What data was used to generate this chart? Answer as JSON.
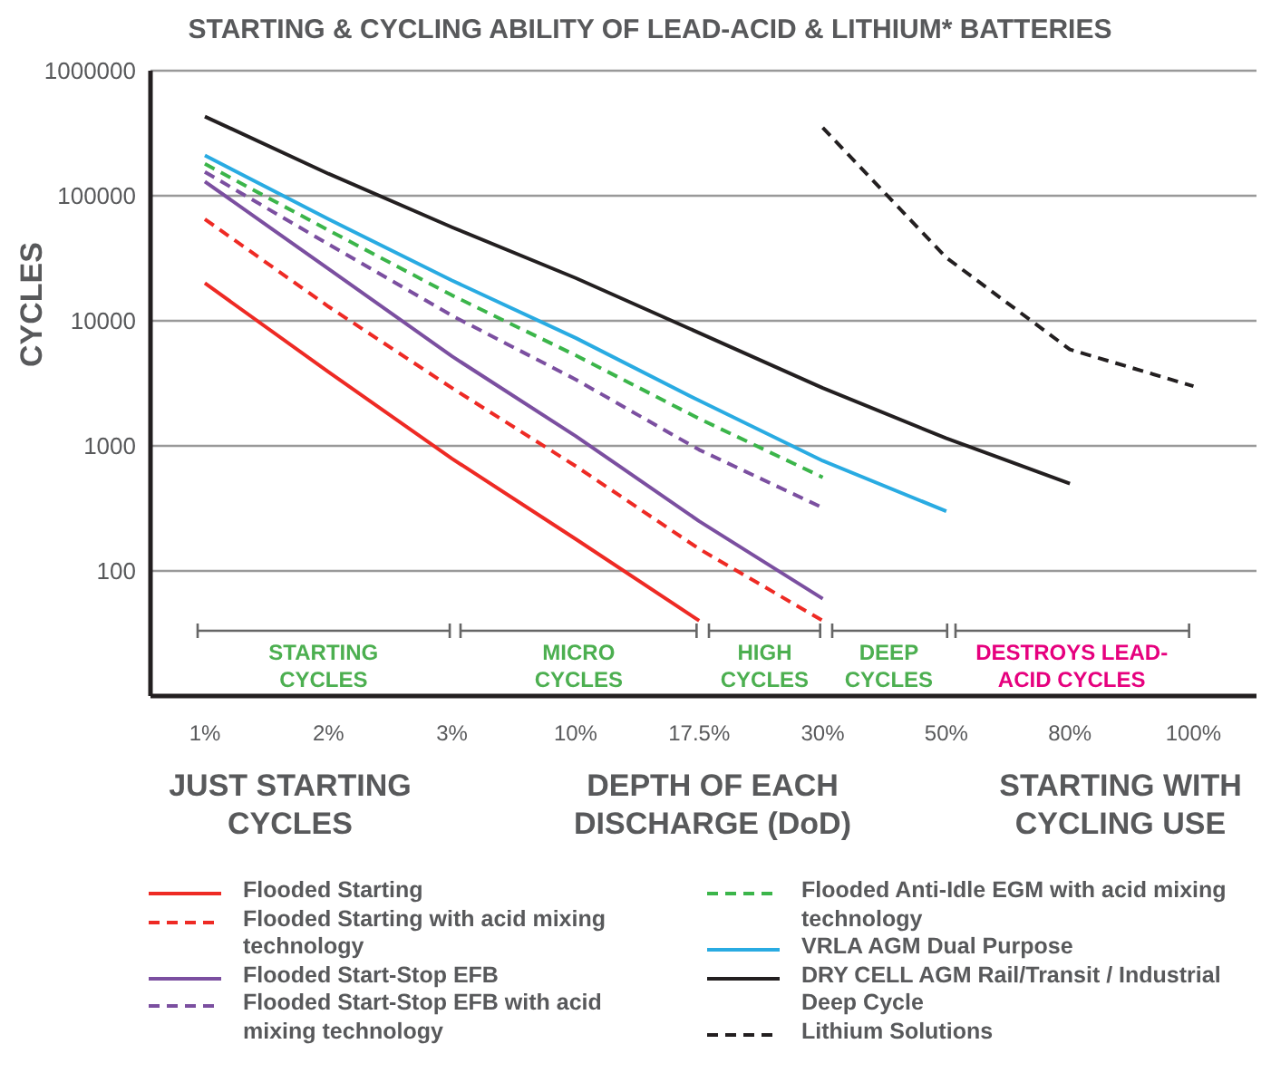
{
  "chart_data": {
    "type": "line",
    "title": "STARTING & CYCLING ABILITY OF LEAD-ACID & LITHIUM* BATTERIES",
    "xlabel": "DEPTH OF EACH DISCHARGE (DoD)",
    "ylabel": "CYCLES",
    "categories": [
      "1%",
      "2%",
      "3%",
      "10%",
      "17.5%",
      "30%",
      "50%",
      "80%",
      "100%"
    ],
    "series": [
      {
        "name": "Flooded Starting",
        "color": "#ee2a24",
        "line_style": "solid",
        "values": [
          20000,
          3900,
          790,
          180,
          40,
          null,
          null,
          null,
          null
        ]
      },
      {
        "name": "Flooded Starting with acid mixing technology",
        "color": "#ee2a24",
        "line_style": "dashed",
        "values": [
          65000,
          13000,
          2900,
          690,
          150,
          40,
          null,
          null,
          null
        ]
      },
      {
        "name": "Flooded Start-Stop EFB",
        "color": "#7b4fa0",
        "line_style": "solid",
        "values": [
          130000,
          26000,
          5200,
          1200,
          250,
          60,
          null,
          null,
          null
        ]
      },
      {
        "name": "Flooded Start-Stop EFB with acid mixing technology",
        "color": "#7b4fa0",
        "line_style": "dashed",
        "values": [
          155000,
          41000,
          11000,
          3400,
          930,
          320,
          null,
          null,
          null
        ]
      },
      {
        "name": "Flooded Anti-Idle EGM with acid mixing technology",
        "color": "#3bb54a",
        "line_style": "dashed",
        "values": [
          180000,
          53000,
          16000,
          5300,
          1650,
          560,
          null,
          null,
          null
        ]
      },
      {
        "name": "VRLA AGM Dual Purpose",
        "color": "#29abe2",
        "line_style": "solid",
        "values": [
          210000,
          65000,
          21000,
          7300,
          2300,
          760,
          300,
          null,
          null
        ]
      },
      {
        "name": "DRY CELL AGM Rail/Transit / Industrial Deep Cycle",
        "color": "#231f20",
        "line_style": "solid",
        "values": [
          430000,
          150000,
          56000,
          22000,
          8000,
          2900,
          1150,
          500,
          null
        ]
      },
      {
        "name": "Lithium Solutions",
        "color": "#231f20",
        "line_style": "dashed",
        "values": [
          null,
          null,
          null,
          null,
          null,
          350000,
          32000,
          5900,
          3000
        ]
      }
    ],
    "log": "y",
    "ylim": [
      10,
      1000000
    ],
    "yticks": [
      100,
      1000,
      10000,
      100000,
      1000000
    ],
    "grid": "y",
    "legend": "bottom",
    "annotations": [
      "STARTING CYCLES",
      "MICRO CYCLES",
      "HIGH CYCLES",
      "DEEP CYCLES",
      "DESTROYS LEAD-ACID CYCLES",
      "JUST STARTING CYCLES",
      "STARTING WITH CYCLING USE"
    ]
  }
}
